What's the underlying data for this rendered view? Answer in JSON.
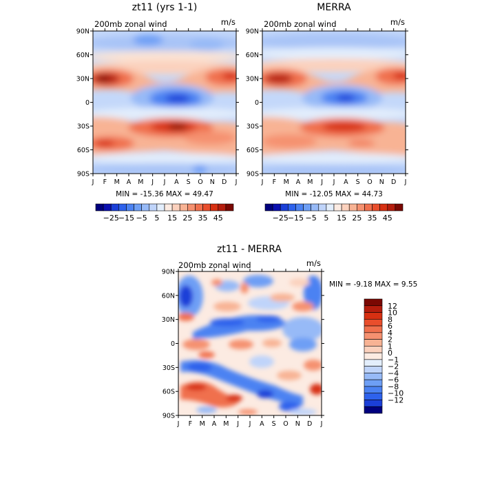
{
  "panels": [
    {
      "title": "zt11 (yrs 1-1)",
      "subtitle": "200mb zonal wind",
      "units": "m/s",
      "minmax": "MIN = -15.36 MAX =  49.47"
    },
    {
      "title": "MERRA",
      "subtitle": "200mb zonal wind",
      "units": "m/s",
      "minmax": "MIN = -12.05 MAX =  44.73"
    },
    {
      "title": "zt11 - MERRA",
      "subtitle": "200mb zonal wind",
      "units": "m/s",
      "minmax": "MIN =   -9.18 MAX =    9.55"
    }
  ],
  "colorbar_top": {
    "labels": [
      "-25",
      "-15",
      "-5",
      "5",
      "15",
      "25",
      "35",
      "45"
    ],
    "colors": [
      "#00007e",
      "#0a0fb0",
      "#1b3fd8",
      "#2e62ec",
      "#4b82f2",
      "#6e9ff5",
      "#97baf7",
      "#bfd4fa",
      "#e3eefc",
      "#fcebe2",
      "#fbd1bd",
      "#f8b394",
      "#f59170",
      "#f0704d",
      "#e94e2c",
      "#d73012",
      "#b51d0d",
      "#7a0803"
    ]
  },
  "colorbar_diff": {
    "labels": [
      "12",
      "10",
      "8",
      "6",
      "4",
      "2",
      "1",
      "0",
      "-1",
      "-2",
      "-4",
      "-6",
      "-8",
      "-10",
      "-12"
    ],
    "colors": [
      "#7a0803",
      "#b51d0d",
      "#d73012",
      "#e94e2c",
      "#f0704d",
      "#f59170",
      "#f8b394",
      "#fbd1bd",
      "#fcebe2",
      "#e3eefc",
      "#bfd4fa",
      "#97baf7",
      "#6e9ff5",
      "#4b82f2",
      "#2e62ec",
      "#1b3fd8",
      "#00007e"
    ]
  },
  "chart_data": [
    {
      "type": "heatmap",
      "title": "zt11 (yrs 1-1)",
      "subtitle": "200mb zonal wind",
      "units": "m/s",
      "x_categories": [
        "J",
        "F",
        "M",
        "A",
        "M",
        "J",
        "J",
        "A",
        "S",
        "O",
        "N",
        "D",
        "J"
      ],
      "y_ticks": [
        "90S",
        "60S",
        "30S",
        "0",
        "30N",
        "60N",
        "90N"
      ],
      "ylim": [
        -90,
        90
      ],
      "min": -15.36,
      "max": 49.47,
      "features": [
        {
          "month": 1.2,
          "lat": 30,
          "value": 48
        },
        {
          "month": 12.5,
          "lat": 30,
          "value": 40
        },
        {
          "month": 7.5,
          "lat": -28,
          "value": 49
        },
        {
          "month": 1,
          "lat": -50,
          "value": 38
        },
        {
          "month": 7.3,
          "lat": 5,
          "value": -15
        }
      ]
    },
    {
      "type": "heatmap",
      "title": "MERRA",
      "subtitle": "200mb zonal wind",
      "units": "m/s",
      "x_categories": [
        "J",
        "F",
        "M",
        "A",
        "M",
        "J",
        "J",
        "A",
        "S",
        "O",
        "N",
        "D",
        "J"
      ],
      "y_ticks": [
        "90S",
        "60S",
        "30S",
        "0",
        "30N",
        "60N",
        "90N"
      ],
      "ylim": [
        -90,
        90
      ],
      "min": -12.05,
      "max": 44.73,
      "features": [
        {
          "month": 1.5,
          "lat": 30,
          "value": 44
        },
        {
          "month": 12.5,
          "lat": 30,
          "value": 38
        },
        {
          "month": 7.5,
          "lat": -28,
          "value": 42
        },
        {
          "month": 1,
          "lat": -48,
          "value": 32
        },
        {
          "month": 7.3,
          "lat": 5,
          "value": -12
        }
      ]
    },
    {
      "type": "heatmap",
      "title": "zt11 - MERRA",
      "subtitle": "200mb zonal wind",
      "units": "m/s",
      "x_categories": [
        "J",
        "F",
        "M",
        "A",
        "M",
        "J",
        "J",
        "A",
        "S",
        "O",
        "N",
        "D",
        "J"
      ],
      "y_ticks": [
        "90S",
        "60S",
        "30S",
        "0",
        "30N",
        "60N",
        "90N"
      ],
      "ylim": [
        -90,
        90
      ],
      "min": -9.18,
      "max": 9.55,
      "levels": [
        -12,
        -10,
        -8,
        -6,
        -4,
        -2,
        -1,
        0,
        1,
        2,
        4,
        6,
        8,
        10,
        12
      ]
    }
  ]
}
